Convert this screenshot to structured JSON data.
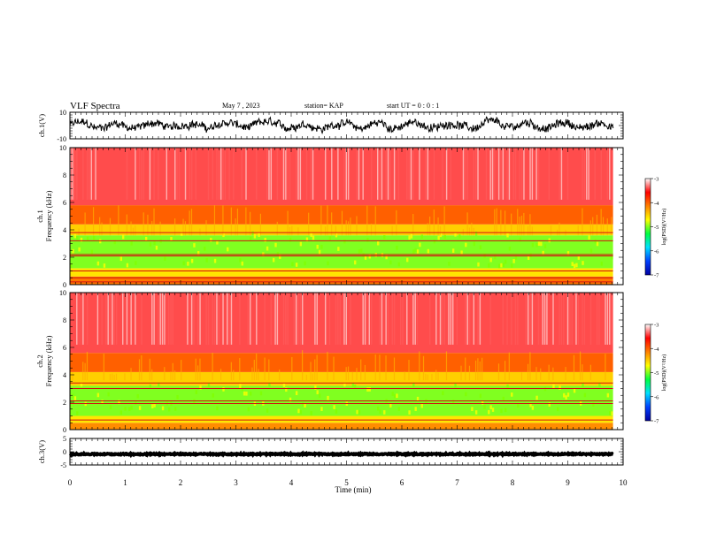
{
  "header": {
    "title": "VLF Spectra",
    "date": "May 7 , 2023",
    "station": "station= KAP",
    "start": "start UT = 0 : 0 : 1"
  },
  "chart_data": [
    {
      "type": "line",
      "panel": "ch1-waveform",
      "ylabel": "ch.1(V)",
      "ylim": [
        -10,
        10
      ],
      "ytick_labels": [
        "10",
        "-10"
      ],
      "xlim": [
        0,
        10
      ],
      "data_span_min": [
        0,
        9.82
      ],
      "color": "#000000",
      "description_values": {
        "mean": 0,
        "approx_amplitude": 6
      }
    },
    {
      "type": "heatmap",
      "panel": "ch1-spectrogram",
      "ylabel_line1": "ch.1",
      "ylabel_line2": "Frequency (kHz)",
      "ylim": [
        0,
        10
      ],
      "ytick_labels": [
        "0",
        "2",
        "4",
        "6",
        "8",
        "10"
      ],
      "xlim": [
        0,
        10
      ],
      "data_span_min": [
        0,
        9.82
      ],
      "bands_khz": [
        {
          "from": 0.0,
          "to": 0.6,
          "log_psd": -4.1
        },
        {
          "from": 0.6,
          "to": 1.2,
          "log_psd": -4.6
        },
        {
          "from": 1.2,
          "to": 3.6,
          "log_psd": -5.0
        },
        {
          "from": 3.6,
          "to": 4.4,
          "log_psd": -4.5
        },
        {
          "from": 4.4,
          "to": 5.8,
          "log_psd": -4.0
        },
        {
          "from": 5.8,
          "to": 10.0,
          "log_psd": -3.4
        }
      ],
      "lines_khz": [
        0.2,
        0.5,
        1.0,
        2.1,
        2.2,
        3.2,
        3.8
      ]
    },
    {
      "type": "heatmap",
      "panel": "ch2-spectrogram",
      "ylabel_line1": "ch.2",
      "ylabel_line2": "Frequency (kHz)",
      "ylim": [
        0,
        10
      ],
      "ytick_labels": [
        "0",
        "2",
        "4",
        "6",
        "8",
        "10"
      ],
      "xlim": [
        0,
        10
      ],
      "data_span_min": [
        0,
        9.82
      ],
      "bands_khz": [
        {
          "from": 0.0,
          "to": 0.5,
          "log_psd": -4.2
        },
        {
          "from": 0.5,
          "to": 1.0,
          "log_psd": -4.6
        },
        {
          "from": 1.0,
          "to": 3.2,
          "log_psd": -5.0
        },
        {
          "from": 3.2,
          "to": 4.2,
          "log_psd": -4.5
        },
        {
          "from": 4.2,
          "to": 5.6,
          "log_psd": -4.0
        },
        {
          "from": 5.6,
          "to": 10.0,
          "log_psd": -3.4
        }
      ],
      "lines_khz": [
        0.7,
        1.9,
        2.1,
        3.0,
        3.4
      ]
    },
    {
      "type": "line",
      "panel": "ch3-waveform",
      "ylabel": "ch.3(V)",
      "ylim": [
        -5,
        5
      ],
      "ytick_labels": [
        "5",
        "0",
        "-5"
      ],
      "xlim": [
        0,
        10
      ],
      "data_span_min": [
        0,
        9.82
      ],
      "color": "#000000",
      "description_values": {
        "mean": 0,
        "approx_amplitude": 0.5
      }
    }
  ],
  "colorbar": {
    "label": "log(PSD)(V²/Hz)",
    "range": [
      -7,
      -3
    ],
    "tick_labels": [
      "-3",
      "-4",
      "-5",
      "-6",
      "-7"
    ],
    "colors": [
      "#0000a0",
      "#0040ff",
      "#00e0ff",
      "#00ff40",
      "#ffff00",
      "#ff8000",
      "#ff0000",
      "#ffffff"
    ]
  },
  "xaxis": {
    "label": "Time (min)",
    "range": [
      0,
      10
    ],
    "tick_labels": [
      "0",
      "1",
      "2",
      "3",
      "4",
      "5",
      "6",
      "7",
      "8",
      "9",
      "10"
    ]
  }
}
